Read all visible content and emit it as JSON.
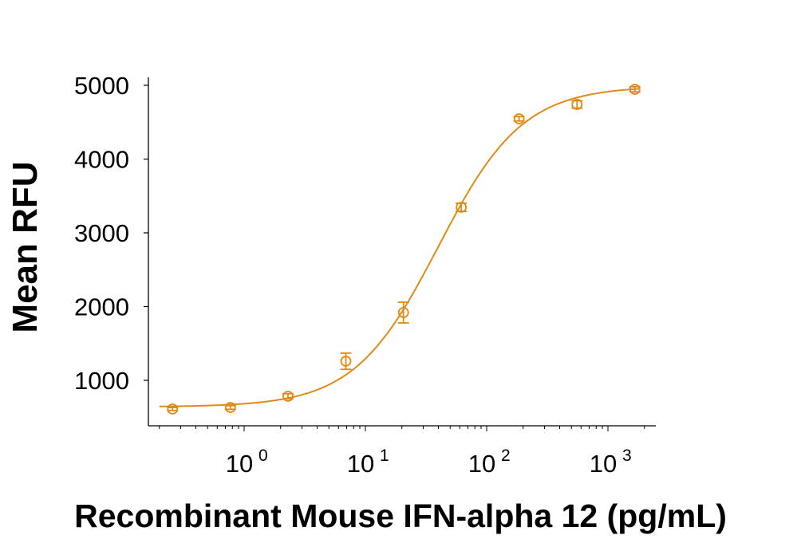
{
  "chart_data": {
    "type": "scatter",
    "title": "",
    "xlabel": "Recombinant Mouse IFN-alpha 12 (pg/mL)",
    "ylabel": "Mean RFU",
    "xscale": "log",
    "xlim": [
      0.15,
      3000
    ],
    "ylim": [
      450,
      5100
    ],
    "grid": false,
    "legend": null,
    "x_ticks": [
      {
        "value": 1,
        "label": "10",
        "exp": "0"
      },
      {
        "value": 10,
        "label": "10",
        "exp": "1"
      },
      {
        "value": 100,
        "label": "10",
        "exp": "2"
      },
      {
        "value": 1000,
        "label": "10",
        "exp": "3"
      }
    ],
    "y_ticks": [
      1000,
      2000,
      3000,
      4000,
      5000
    ],
    "color": "#E08A16",
    "series": [
      {
        "name": "Mean RFU",
        "x": [
          0.257,
          0.77,
          2.3,
          6.9,
          20.6,
          61.7,
          185,
          556,
          1667
        ],
        "y": [
          611,
          632,
          784,
          1259,
          1919,
          3346,
          4546,
          4741,
          4946
        ],
        "error": [
          20,
          25,
          35,
          110,
          140,
          55,
          30,
          50,
          35
        ]
      }
    ],
    "fit": {
      "type": "4PL",
      "bottom": 640,
      "top": 4990,
      "ec50": 40,
      "hill": 1.25
    }
  },
  "labels": {
    "xlabel": "Recombinant Mouse IFN-alpha 12 (pg/mL)",
    "ylabel": "Mean RFU"
  }
}
